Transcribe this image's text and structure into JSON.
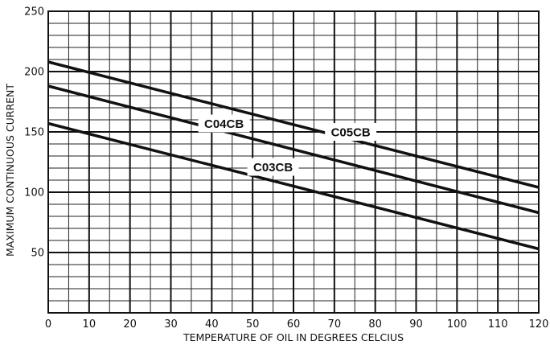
{
  "chart_data": {
    "type": "line",
    "title": "",
    "xlabel": "TEMPERATURE OF OIL IN DEGREES CELCIUS",
    "ylabel": "MAXIMUM CONTINUOUS CURRENT",
    "xlim": [
      0,
      120
    ],
    "ylim": [
      0,
      250
    ],
    "x_ticks": [
      0,
      10,
      20,
      30,
      40,
      50,
      60,
      70,
      80,
      90,
      100,
      110,
      120
    ],
    "y_ticks": [
      50,
      100,
      150,
      200,
      250
    ],
    "grid": true,
    "x_minor_step": 5,
    "y_minor_step": 10,
    "legend": "none",
    "series": [
      {
        "name": "C05CB",
        "x": [
          0,
          120
        ],
        "values": [
          208,
          104
        ],
        "label_at": [
          74,
          150
        ]
      },
      {
        "name": "C04CB",
        "x": [
          0,
          120
        ],
        "values": [
          188,
          83
        ],
        "label_at": [
          43,
          157
        ]
      },
      {
        "name": "C03CB",
        "x": [
          0,
          120
        ],
        "values": [
          157,
          53
        ],
        "label_at": [
          55,
          121
        ]
      }
    ]
  }
}
